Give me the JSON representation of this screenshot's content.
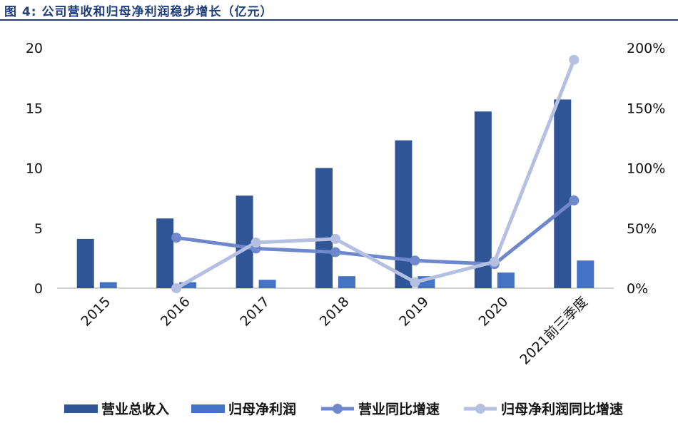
{
  "figure_title": "图 4:  公司营收和归母净利润稳步增长（亿元）",
  "chart_data": {
    "type": "bar",
    "categories": [
      "2015",
      "2016",
      "2017",
      "2018",
      "2019",
      "2020",
      "2021前三季度"
    ],
    "series": [
      {
        "name": "营业总收入",
        "kind": "bar",
        "axis": "left",
        "color": "#2f5597",
        "values": [
          4.1,
          5.8,
          7.7,
          10.0,
          12.3,
          14.7,
          15.7
        ]
      },
      {
        "name": "归母净利润",
        "kind": "bar",
        "axis": "left",
        "color": "#4472c4",
        "values": [
          0.5,
          0.5,
          0.7,
          1.0,
          1.0,
          1.3,
          2.3
        ]
      },
      {
        "name": "营业同比增速",
        "kind": "line",
        "axis": "right",
        "color": "#6f87cc",
        "values": [
          null,
          42.0,
          33.0,
          30.0,
          23.0,
          20.0,
          73.0
        ]
      },
      {
        "name": "归母净利润同比增速",
        "kind": "line",
        "axis": "right",
        "color": "#b4bfe2",
        "values": [
          null,
          0.0,
          38.0,
          41.0,
          5.0,
          22.0,
          190.0
        ]
      }
    ],
    "y_left": {
      "min": 0,
      "max": 20,
      "ticks": [
        "0",
        "5",
        "10",
        "15",
        "20"
      ]
    },
    "y_right": {
      "min": 0,
      "max": 200,
      "ticks": [
        "0%",
        "50%",
        "100%",
        "150%",
        "200%"
      ]
    },
    "grid": false,
    "legend_position": "bottom",
    "legend": {
      "revenue": "营业总收入",
      "profit": "归母净利润",
      "revenue_growth": "营业同比增速",
      "profit_growth": "归母净利润同比增速"
    }
  }
}
